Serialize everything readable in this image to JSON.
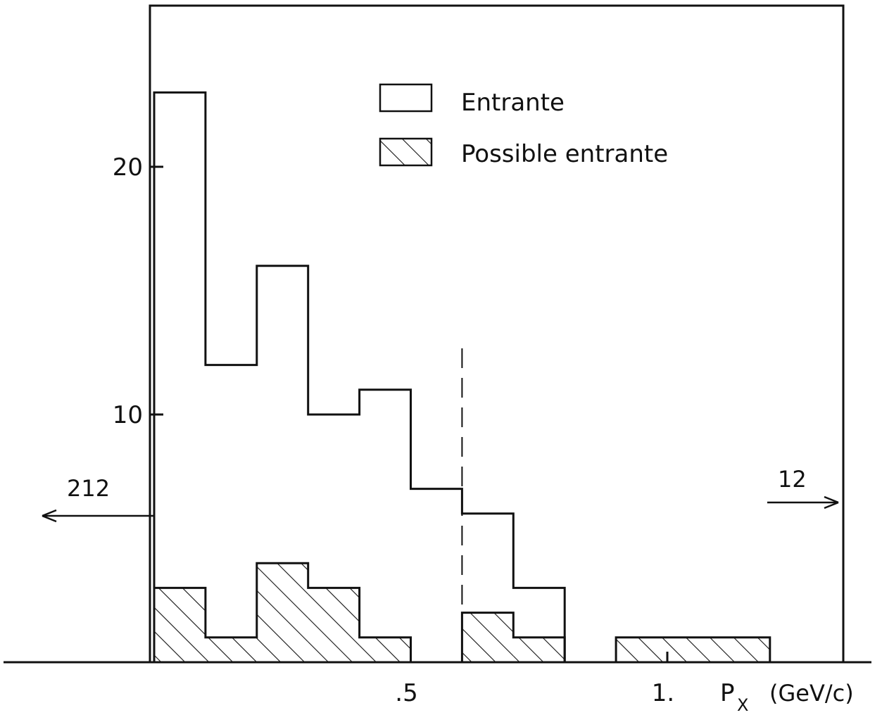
{
  "chart_data": {
    "type": "histogram",
    "xlabel": "P",
    "xlabel_subscript": "X",
    "xlabel_unit": "(GeV/c)",
    "x_ticks": [
      {
        "value": 0.5,
        "label": ".5"
      },
      {
        "value": 1.0,
        "label": "1."
      }
    ],
    "y_ticks": [
      {
        "value": 10,
        "label": "10"
      },
      {
        "value": 20,
        "label": "20"
      }
    ],
    "xlim": [
      0,
      1.35
    ],
    "ylim": [
      0,
      26.5
    ],
    "bin_width": 0.1,
    "series": [
      {
        "name": "Entrante",
        "fill": "open",
        "bins": [
          {
            "x0": 0.0,
            "value": 23
          },
          {
            "x0": 0.1,
            "value": 12
          },
          {
            "x0": 0.2,
            "value": 16
          },
          {
            "x0": 0.3,
            "value": 10
          },
          {
            "x0": 0.4,
            "value": 11
          },
          {
            "x0": 0.5,
            "value": 7
          },
          {
            "x0": 0.6,
            "value": 6
          },
          {
            "x0": 0.7,
            "value": 3
          }
        ]
      },
      {
        "name": "Possible entrante",
        "fill": "hatched",
        "bins": [
          {
            "x0": 0.0,
            "value": 3
          },
          {
            "x0": 0.1,
            "value": 1
          },
          {
            "x0": 0.2,
            "value": 4
          },
          {
            "x0": 0.3,
            "value": 3
          },
          {
            "x0": 0.4,
            "value": 1
          },
          {
            "x0": 0.6,
            "value": 2
          },
          {
            "x0": 0.7,
            "value": 1
          },
          {
            "x0": 0.9,
            "value": 1
          },
          {
            "x0": 1.0,
            "value": 1
          },
          {
            "x0": 1.1,
            "value": 1
          }
        ]
      }
    ],
    "cut_line_x": 0.6,
    "overflow_annotations": [
      {
        "label": "212",
        "direction": "left"
      },
      {
        "label": "12",
        "direction": "right"
      }
    ],
    "legend_position": "top-right",
    "grid": false,
    "colors": {
      "ink": "#111111",
      "background": "#ffffff"
    }
  }
}
